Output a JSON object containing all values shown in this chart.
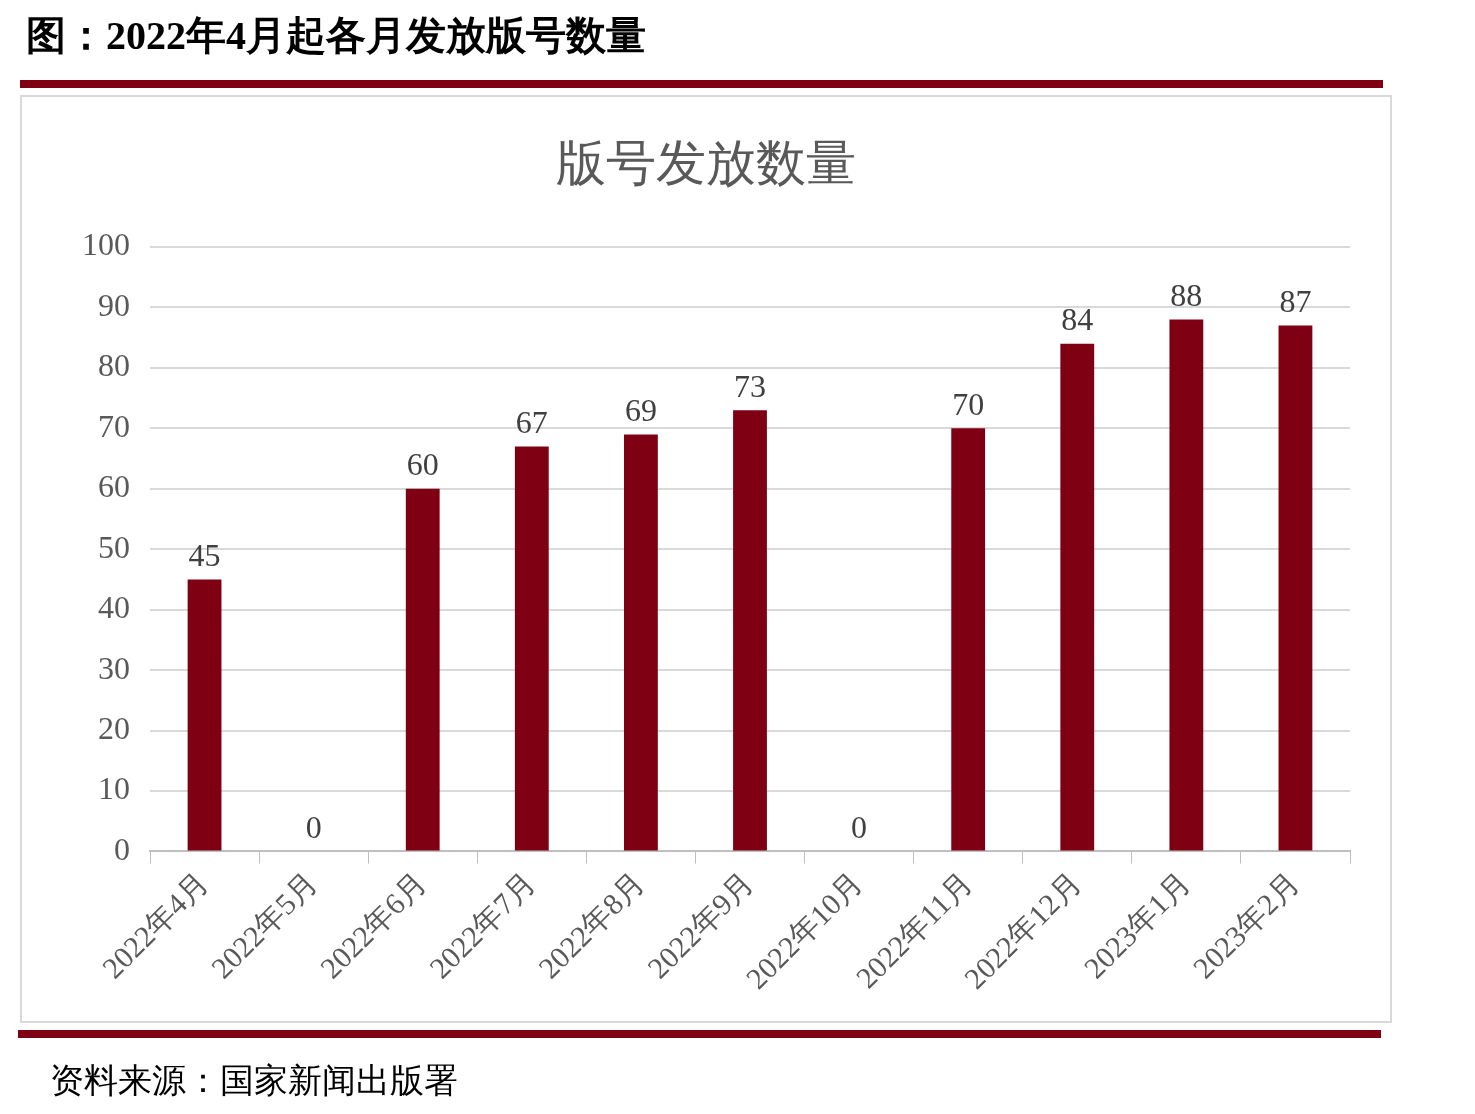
{
  "chart_data": {
    "type": "bar",
    "title": "图：2022年4月起各月发放版号数量",
    "subtitle": "版号发放数量",
    "categories": [
      "2022年4月",
      "2022年5月",
      "2022年6月",
      "2022年7月",
      "2022年8月",
      "2022年9月",
      "2022年10月",
      "2022年11月",
      "2022年12月",
      "2023年1月",
      "2023年2月"
    ],
    "values": [
      45,
      0,
      60,
      67,
      69,
      73,
      0,
      70,
      84,
      88,
      87
    ],
    "color": "#7f0013",
    "ylim": [
      0,
      100
    ],
    "yticks": [
      0,
      10,
      20,
      30,
      40,
      50,
      60,
      70,
      80,
      90,
      100
    ],
    "grid": "y",
    "data_labels": true,
    "annotations": [
      "资料来源：国家新闻出版署"
    ]
  }
}
